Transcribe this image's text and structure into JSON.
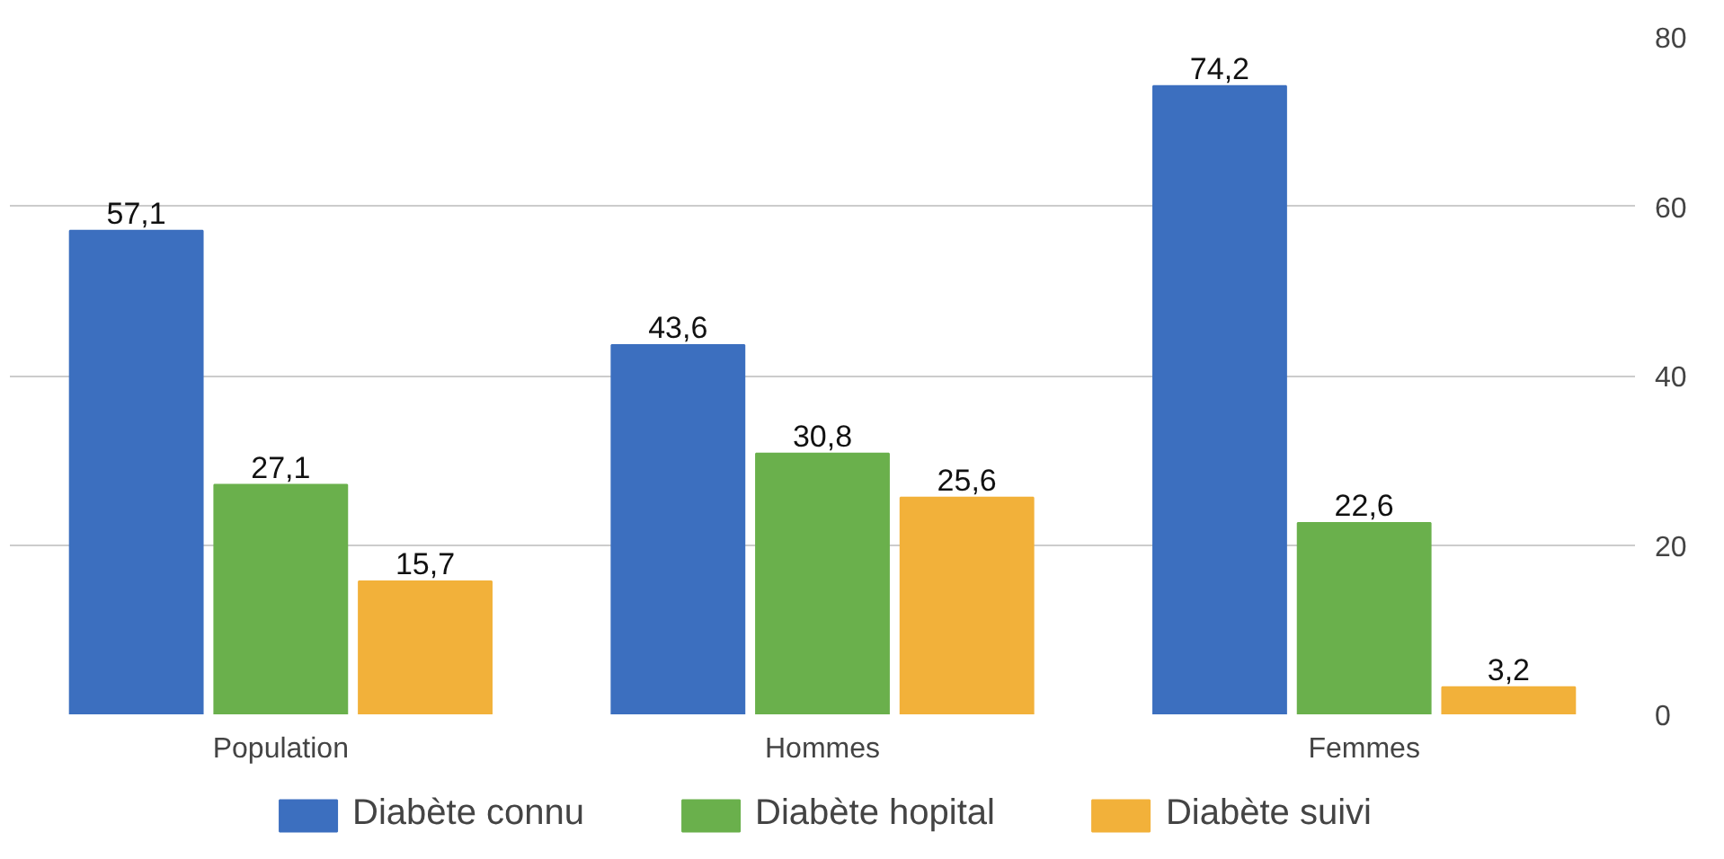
{
  "chart_data": {
    "type": "bar",
    "categories": [
      "Population",
      "Hommes",
      "Femmes"
    ],
    "series": [
      {
        "name": "Diabète connu",
        "color": "#3c6fbf",
        "values": [
          57.1,
          43.6,
          74.2
        ],
        "value_labels": [
          "57,1",
          "43,6",
          "74,2"
        ]
      },
      {
        "name": "Diabète hopital",
        "color": "#6ab04c",
        "values": [
          27.1,
          30.8,
          22.6
        ],
        "value_labels": [
          "27,1",
          "30,8",
          "22,6"
        ]
      },
      {
        "name": "Diabète suivi",
        "color": "#f2b13a",
        "values": [
          15.7,
          25.6,
          3.2
        ],
        "value_labels": [
          "15,7",
          "25,6",
          "3,2"
        ]
      }
    ],
    "ylim": [
      0,
      80
    ],
    "yticks": [
      0,
      20,
      40,
      60,
      80
    ],
    "grid": "y",
    "legend": "bottom"
  }
}
